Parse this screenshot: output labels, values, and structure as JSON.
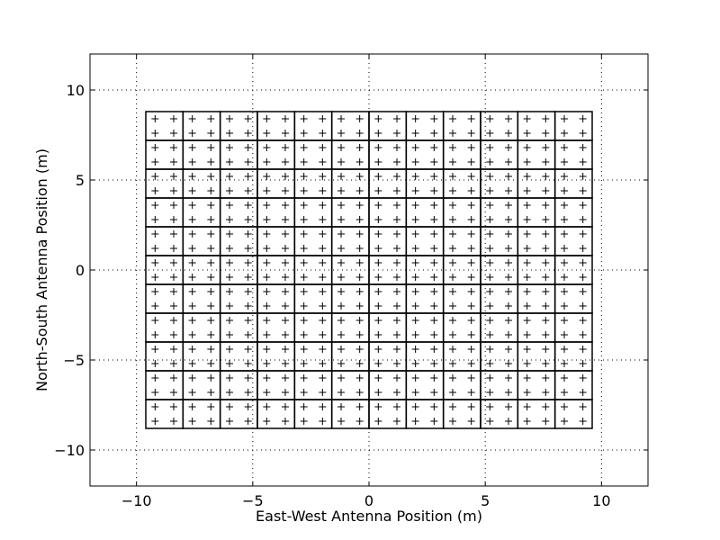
{
  "chart_data": {
    "type": "scatter",
    "title": "",
    "xlabel": "East-West Antenna Position (m)",
    "ylabel": "North-South Antenna Position (m)",
    "xlim": [
      -12,
      12
    ],
    "ylim": [
      -12,
      12
    ],
    "grid": true,
    "legend": "none",
    "xticks": [
      -10,
      -5,
      0,
      5,
      10
    ],
    "yticks": [
      -10,
      -5,
      0,
      5,
      10
    ],
    "xtick_labels": [
      "−10",
      "−5",
      "0",
      "5",
      "10"
    ],
    "ytick_labels": [
      "−10",
      "−5",
      "0",
      "5",
      "10"
    ],
    "marker": "+",
    "marker_color": "#000000",
    "tile_edge_color": "#000000",
    "tiles": {
      "columns": 12,
      "rows": 11,
      "x_start": -9.6,
      "x_end": 9.6,
      "y_start": -8.8,
      "y_end": 8.8,
      "antennas_per_side": 2,
      "antenna_offsets": [
        -0.4,
        0.4
      ]
    }
  }
}
